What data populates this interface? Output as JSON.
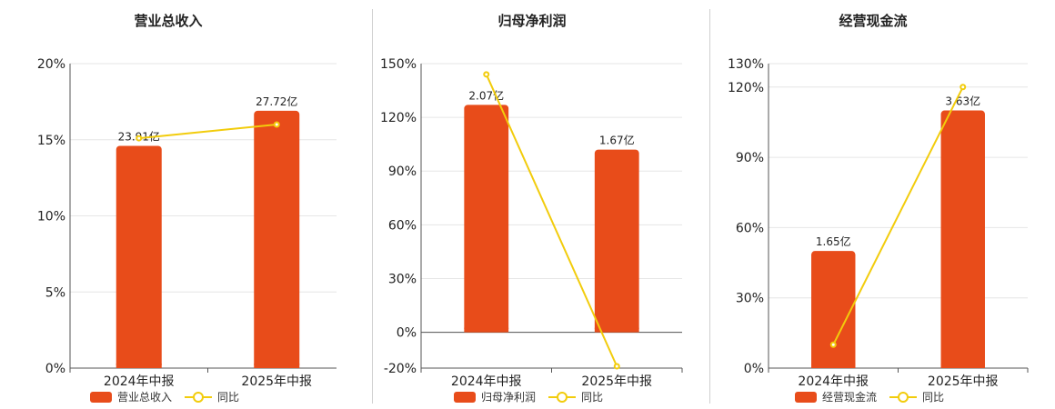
{
  "colors": {
    "bar": "#e84c1a",
    "line": "#f2cc0c",
    "grid": "#e6e6e6",
    "axis": "#555555"
  },
  "legend_line_label": "同比",
  "chart_data": [
    {
      "type": "bar",
      "title": "营业总收入",
      "categories": [
        "2024年中报",
        "2025年中报"
      ],
      "ylim": [
        0,
        20
      ],
      "yticks": [
        0,
        5,
        10,
        15,
        20
      ],
      "ytick_labels": [
        "0%",
        "5%",
        "10%",
        "15%",
        "20%"
      ],
      "series": [
        {
          "name": "营业总收入",
          "type": "bar",
          "values": [
            14.6,
            16.9
          ],
          "labels": [
            "23.91亿",
            "27.72亿"
          ]
        },
        {
          "name": "同比",
          "type": "line",
          "values": [
            15.1,
            16.0
          ]
        }
      ]
    },
    {
      "type": "bar",
      "title": "归母净利润",
      "categories": [
        "2024年中报",
        "2025年中报"
      ],
      "ylim": [
        -20,
        150
      ],
      "yticks": [
        -20,
        0,
        30,
        60,
        90,
        120,
        150
      ],
      "ytick_labels": [
        "-20%",
        "0%",
        "30%",
        "60%",
        "90%",
        "120%",
        "150%"
      ],
      "series": [
        {
          "name": "归母净利润",
          "type": "bar",
          "values": [
            127,
            102
          ],
          "labels": [
            "2.07亿",
            "1.67亿"
          ]
        },
        {
          "name": "同比",
          "type": "line",
          "values": [
            144,
            -19
          ]
        }
      ]
    },
    {
      "type": "bar",
      "title": "经营现金流",
      "categories": [
        "2024年中报",
        "2025年中报"
      ],
      "ylim": [
        0,
        130
      ],
      "yticks": [
        0,
        30,
        60,
        90,
        120,
        130
      ],
      "ytick_labels": [
        "0%",
        "30%",
        "60%",
        "90%",
        "120%",
        "130%"
      ],
      "series": [
        {
          "name": "经营现金流",
          "type": "bar",
          "values": [
            50,
            110
          ],
          "labels": [
            "1.65亿",
            "3.63亿"
          ]
        },
        {
          "name": "同比",
          "type": "line",
          "values": [
            10,
            120
          ]
        }
      ]
    }
  ]
}
